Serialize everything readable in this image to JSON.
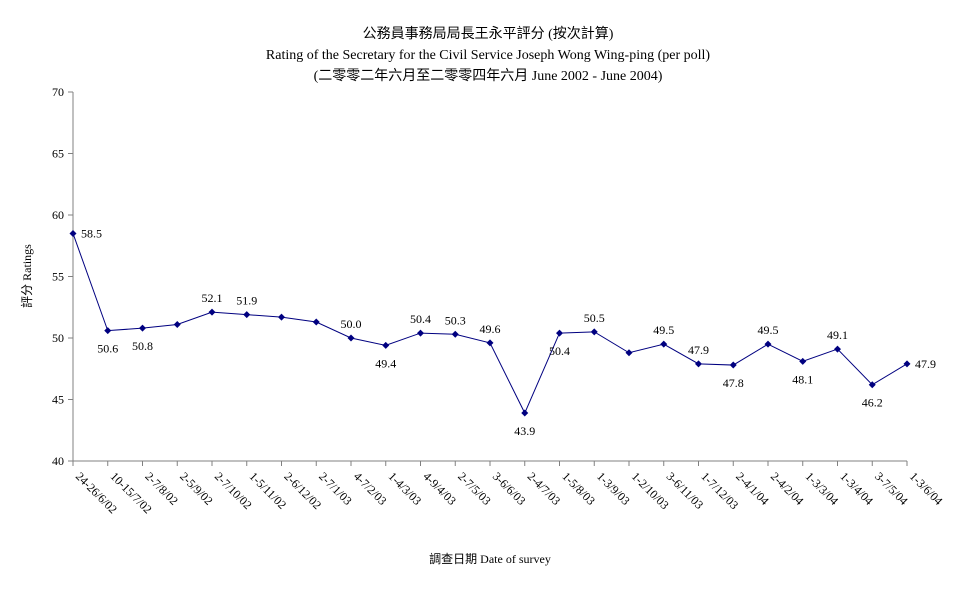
{
  "chart_data": {
    "type": "line",
    "title": "公務員事務局局長王永平評分 (按次計算)",
    "subtitle": "Rating of the Secretary for the Civil Service Joseph Wong Wing-ping  (per poll)",
    "subtitle2": "(二零零二年六月至二零零四年六月 June 2002 - June 2004)",
    "xlabel": "調查日期 Date of survey",
    "ylabel": "評分 Ratings",
    "ylim": [
      40,
      70
    ],
    "yticks": [
      40,
      45,
      50,
      55,
      60,
      65,
      70
    ],
    "grid": false,
    "categories": [
      "24-26/6/02",
      "10-15/7/02",
      "2-7/8/02",
      "2-5/9/02",
      "2-7/10/02",
      "1-5/11/02",
      "2-6/12/02",
      "2-7/1/03",
      "4-7/2/03",
      "1-4/3/03",
      "4-9/4/03",
      "2-7/5/03",
      "3-6/6/03",
      "2-4/7/03",
      "1-5/8/03",
      "1-3/9/03",
      "1-2/10/03",
      "3-6/11/03",
      "1-7/12/03",
      "2-4/1/04",
      "2-4/2/04",
      "1-3/3/04",
      "1-3/4/04",
      "3-7/5/04",
      "1-3/6/04"
    ],
    "values": [
      58.5,
      50.6,
      50.8,
      51.1,
      52.1,
      51.9,
      51.7,
      51.3,
      50.0,
      49.4,
      50.4,
      50.3,
      49.6,
      43.9,
      50.4,
      50.5,
      48.8,
      49.5,
      47.9,
      47.8,
      49.5,
      48.1,
      49.1,
      46.2,
      47.9
    ],
    "labels": [
      {
        "index": 0,
        "text": "58.5"
      },
      {
        "index": 1,
        "text": "50.6"
      },
      {
        "index": 2,
        "text": "50.8"
      },
      {
        "index": 4,
        "text": "52.1"
      },
      {
        "index": 5,
        "text": "51.9"
      },
      {
        "index": 8,
        "text": "50.0"
      },
      {
        "index": 9,
        "text": "49.4"
      },
      {
        "index": 10,
        "text": "50.4"
      },
      {
        "index": 11,
        "text": "50.3"
      },
      {
        "index": 12,
        "text": "49.6"
      },
      {
        "index": 13,
        "text": "43.9"
      },
      {
        "index": 14,
        "text": "50.4"
      },
      {
        "index": 15,
        "text": "50.5"
      },
      {
        "index": 17,
        "text": "49.5"
      },
      {
        "index": 18,
        "text": "47.9"
      },
      {
        "index": 19,
        "text": "47.8"
      },
      {
        "index": 20,
        "text": "49.5"
      },
      {
        "index": 21,
        "text": "48.1"
      },
      {
        "index": 22,
        "text": "49.1"
      },
      {
        "index": 23,
        "text": "46.2"
      },
      {
        "index": 24,
        "text": "47.9"
      }
    ],
    "line_color": "#000080",
    "marker_color": "#000080",
    "axis_color": "#808080"
  }
}
